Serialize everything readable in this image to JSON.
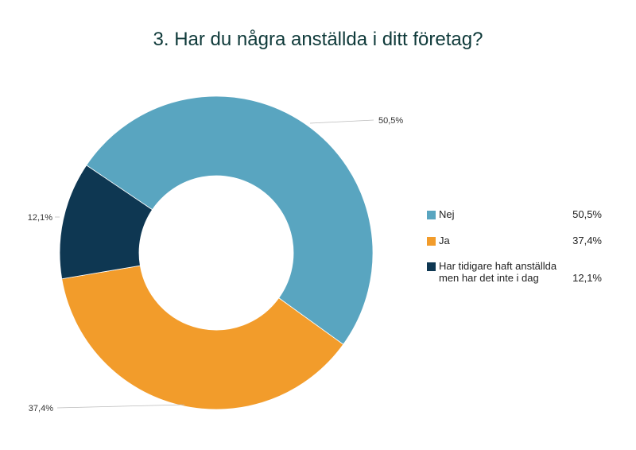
{
  "chart_data": {
    "type": "pie",
    "donut": true,
    "title": "3. Har du några anställda i ditt företag?",
    "slices": [
      {
        "label": "Nej",
        "value": 50.5,
        "display": "50,5%",
        "color": "#59a5c0"
      },
      {
        "label": "Ja",
        "value": 37.4,
        "display": "37,4%",
        "color": "#f29c2b"
      },
      {
        "label": "Har tidigare haft anställda men har det inte i dag",
        "value": 12.1,
        "display": "12,1%",
        "color": "#0e3752"
      }
    ],
    "legend_position": "right"
  }
}
